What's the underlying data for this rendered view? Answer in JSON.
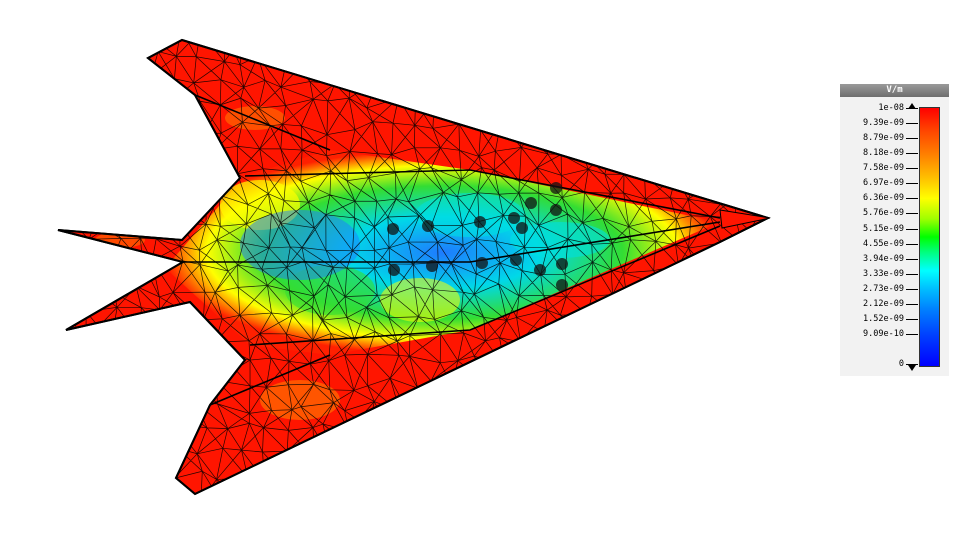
{
  "legend": {
    "unit": "V/m",
    "max_label": "1e-08",
    "min_label": "0",
    "ticks": [
      "1e-08",
      "9.39e-09",
      "8.79e-09",
      "8.18e-09",
      "7.58e-09",
      "6.97e-09",
      "6.36e-09",
      "5.76e-09",
      "5.15e-09",
      "4.55e-09",
      "3.94e-09",
      "3.33e-09",
      "2.73e-09",
      "2.12e-09",
      "1.52e-09",
      "9.09e-10",
      "0"
    ],
    "colormap": [
      "#0000ff",
      "#0080ff",
      "#00ffff",
      "#00ff00",
      "#ffff00",
      "#ff8000",
      "#ff0000"
    ]
  },
  "model": {
    "mesh": "triangular-surface-mesh",
    "edge_color": "#000000",
    "field_colors": {
      "high": "#ff0000",
      "upper": "#ff8000",
      "mid_high": "#ffff00",
      "mid": "#33dd33",
      "mid_low": "#00e0e0",
      "low": "#1e7bff"
    }
  }
}
